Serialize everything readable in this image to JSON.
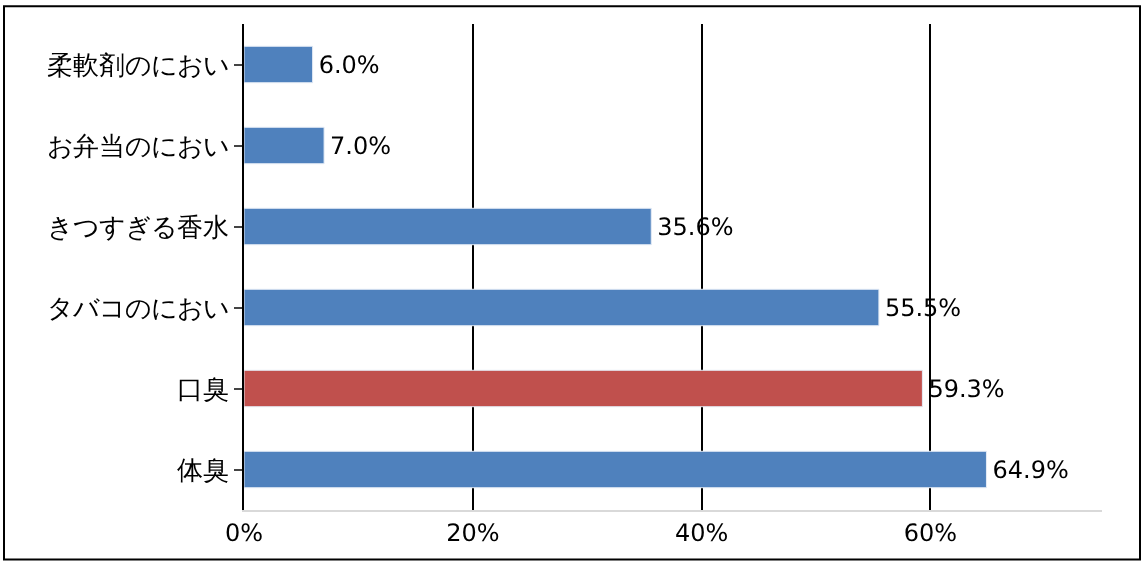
{
  "chart_data": {
    "type": "bar",
    "orientation": "horizontal",
    "categories": [
      "柔軟剤のにおい",
      "お弁当のにおい",
      "きつすぎる香水",
      "タバコのにおい",
      "口臭",
      "体臭"
    ],
    "values": [
      6.0,
      7.0,
      35.6,
      55.5,
      59.3,
      64.9
    ],
    "colors": [
      "#4f81bd",
      "#4f81bd",
      "#4f81bd",
      "#4f81bd",
      "#c0504d",
      "#4f81bd"
    ],
    "value_labels": [
      "6.0%",
      "7.0%",
      "35.6%",
      "55.5%",
      "59.3%",
      "64.9%"
    ],
    "xlim": [
      0,
      75
    ],
    "xticks": [
      {
        "value": 0,
        "label": "0%"
      },
      {
        "value": 20,
        "label": "20%"
      },
      {
        "value": 40,
        "label": "40%"
      },
      {
        "value": 60,
        "label": "60%"
      }
    ],
    "grid": "x"
  }
}
